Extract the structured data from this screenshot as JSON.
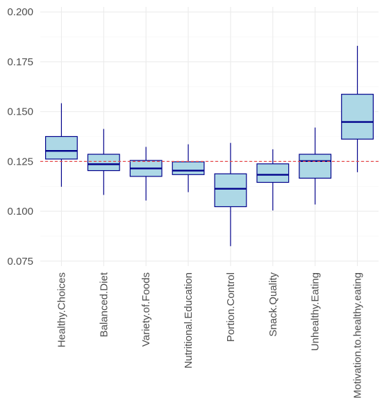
{
  "chart_data": {
    "type": "box",
    "title": "",
    "xlabel": "",
    "ylabel": "",
    "categories": [
      "Healthy.Choices",
      "Balanced.Diet",
      "Variety.of.Foods",
      "Nutritional.Education",
      "Portion.Control",
      "Snack.Quality",
      "Unhealthy.Eating",
      "Motivation.to.healthy.eating"
    ],
    "boxes": [
      {
        "category": "Healthy.Choices",
        "min": 0.1123,
        "q1": 0.1262,
        "median": 0.1303,
        "q3": 0.1375,
        "max": 0.1542
      },
      {
        "category": "Balanced.Diet",
        "min": 0.1082,
        "q1": 0.1204,
        "median": 0.1236,
        "q3": 0.1286,
        "max": 0.1413
      },
      {
        "category": "Variety.of.Foods",
        "min": 0.1054,
        "q1": 0.1175,
        "median": 0.1215,
        "q3": 0.1255,
        "max": 0.1323
      },
      {
        "category": "Nutritional.Education",
        "min": 0.1096,
        "q1": 0.1184,
        "median": 0.1204,
        "q3": 0.1248,
        "max": 0.1336
      },
      {
        "category": "Portion.Control",
        "min": 0.0825,
        "q1": 0.1023,
        "median": 0.1113,
        "q3": 0.1188,
        "max": 0.1343
      },
      {
        "category": "Snack.Quality",
        "min": 0.1004,
        "q1": 0.1145,
        "median": 0.1183,
        "q3": 0.1238,
        "max": 0.1311
      },
      {
        "category": "Unhealthy.Eating",
        "min": 0.1034,
        "q1": 0.1166,
        "median": 0.1252,
        "q3": 0.1286,
        "max": 0.142
      },
      {
        "category": "Motivation.to.healthy.eating",
        "min": 0.1196,
        "q1": 0.1362,
        "median": 0.1448,
        "q3": 0.1587,
        "max": 0.183
      }
    ],
    "reference_line": {
      "y": 0.125,
      "style": "dashed",
      "color": "#e8474a"
    },
    "yticks": [
      0.075,
      0.1,
      0.125,
      0.15,
      0.175,
      0.2
    ],
    "ytick_labels": [
      "0.075",
      "0.100",
      "0.125",
      "0.150",
      "0.175",
      "0.200"
    ],
    "ylim": [
      0.0725,
      0.2025
    ],
    "grid": true,
    "legend": "none",
    "colors": {
      "box_fill": "#add8e6",
      "box_stroke": "#00008b",
      "median": "#00008b",
      "whisker": "#00008b",
      "grid_major": "#ebebeb",
      "grid_minor": "#f5f5f5",
      "axis_text": "#4d4d4d"
    }
  }
}
